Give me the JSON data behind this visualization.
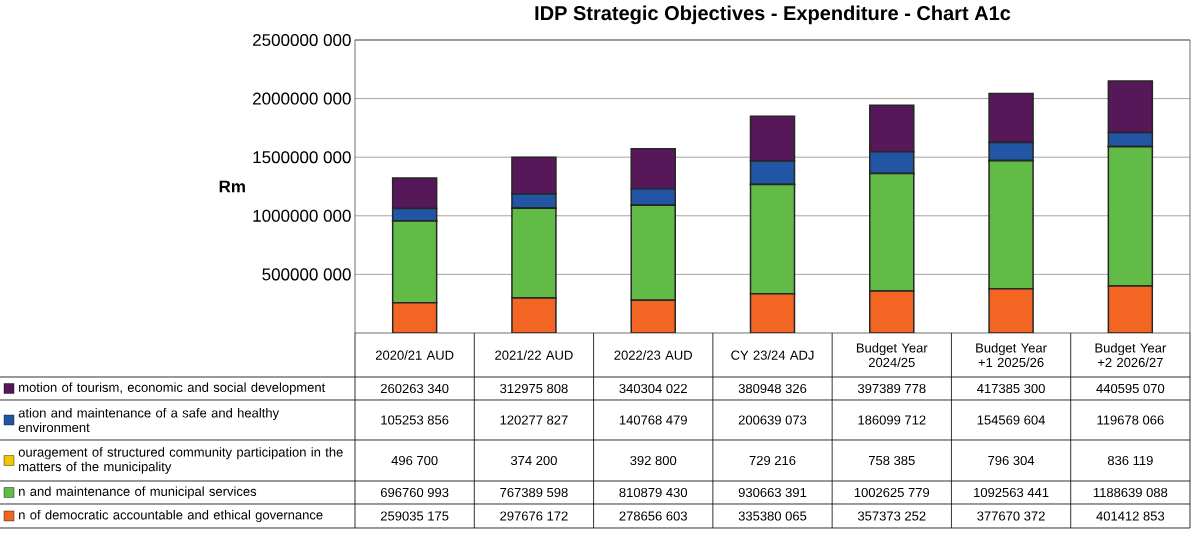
{
  "chart_data": {
    "type": "bar",
    "title": "IDP Strategic Objectives - Expenditure - Chart A1c",
    "ylabel": "Rm",
    "categories": [
      "2020/21 AUD",
      "2021/22 AUD",
      "2022/23 AUD",
      "CY  23/24 ADJ",
      "Budget Year 2024/25",
      "Budget Year +1 2025/26",
      "Budget Year +2 2026/27"
    ],
    "stacked": true,
    "grid": "y",
    "legend": "left",
    "ylim": [
      0,
      2500000000
    ],
    "yticks": [
      {
        "value": 500000000,
        "label": "500000 000"
      },
      {
        "value": 1000000000,
        "label": "1000000 000"
      },
      {
        "value": 1500000000,
        "label": "1500000 000"
      },
      {
        "value": 2000000000,
        "label": "2000000 000"
      },
      {
        "value": 2500000000,
        "label": "2500000 000"
      }
    ],
    "series": [
      {
        "name": "n of democratic accountable and ethical governance",
        "color": "#f26522",
        "values": [
          259035175,
          297676172,
          278656603,
          335380065,
          357373252,
          377670372,
          401412853
        ],
        "value_labels": [
          "259035 175",
          "297676 172",
          "278656 603",
          "335380 065",
          "357373 252",
          "377670 372",
          "401412 853"
        ]
      },
      {
        "name": "n and maintenance of municipal services",
        "color": "#62bb46",
        "values": [
          696760993,
          767389598,
          810879430,
          930663391,
          1002625779,
          1092563441,
          1188639088
        ],
        "value_labels": [
          "696760 993",
          "767389 598",
          "810879 430",
          "930663 391",
          "1002625 779",
          "1092563 441",
          "1188639 088"
        ]
      },
      {
        "name": "ouragement of structured community participation in the matters of the municipality",
        "color": "#f2c500",
        "values": [
          496700,
          374200,
          392800,
          729216,
          758385,
          796304,
          836119
        ],
        "value_labels": [
          "496 700",
          "374 200",
          "392 800",
          "729 216",
          "758 385",
          "796 304",
          "836 119"
        ]
      },
      {
        "name": "ation and maintenance of a safe and healthy environment",
        "color": "#2255a4",
        "values": [
          105253856,
          120277827,
          140768479,
          200639073,
          186099712,
          154569604,
          119678066
        ],
        "value_labels": [
          "105253 856",
          "120277 827",
          "140768 479",
          "200639 073",
          "186099 712",
          "154569 604",
          "119678 066"
        ]
      },
      {
        "name": "motion of tourism, economic and social development",
        "color": "#561858",
        "values": [
          260263340,
          312975808,
          340304022,
          380948326,
          397389778,
          417385300,
          440595070
        ],
        "value_labels": [
          "260263 340",
          "312975 808",
          "340304 022",
          "380948 326",
          "397389 778",
          "417385 300",
          "440595 070"
        ]
      }
    ]
  }
}
